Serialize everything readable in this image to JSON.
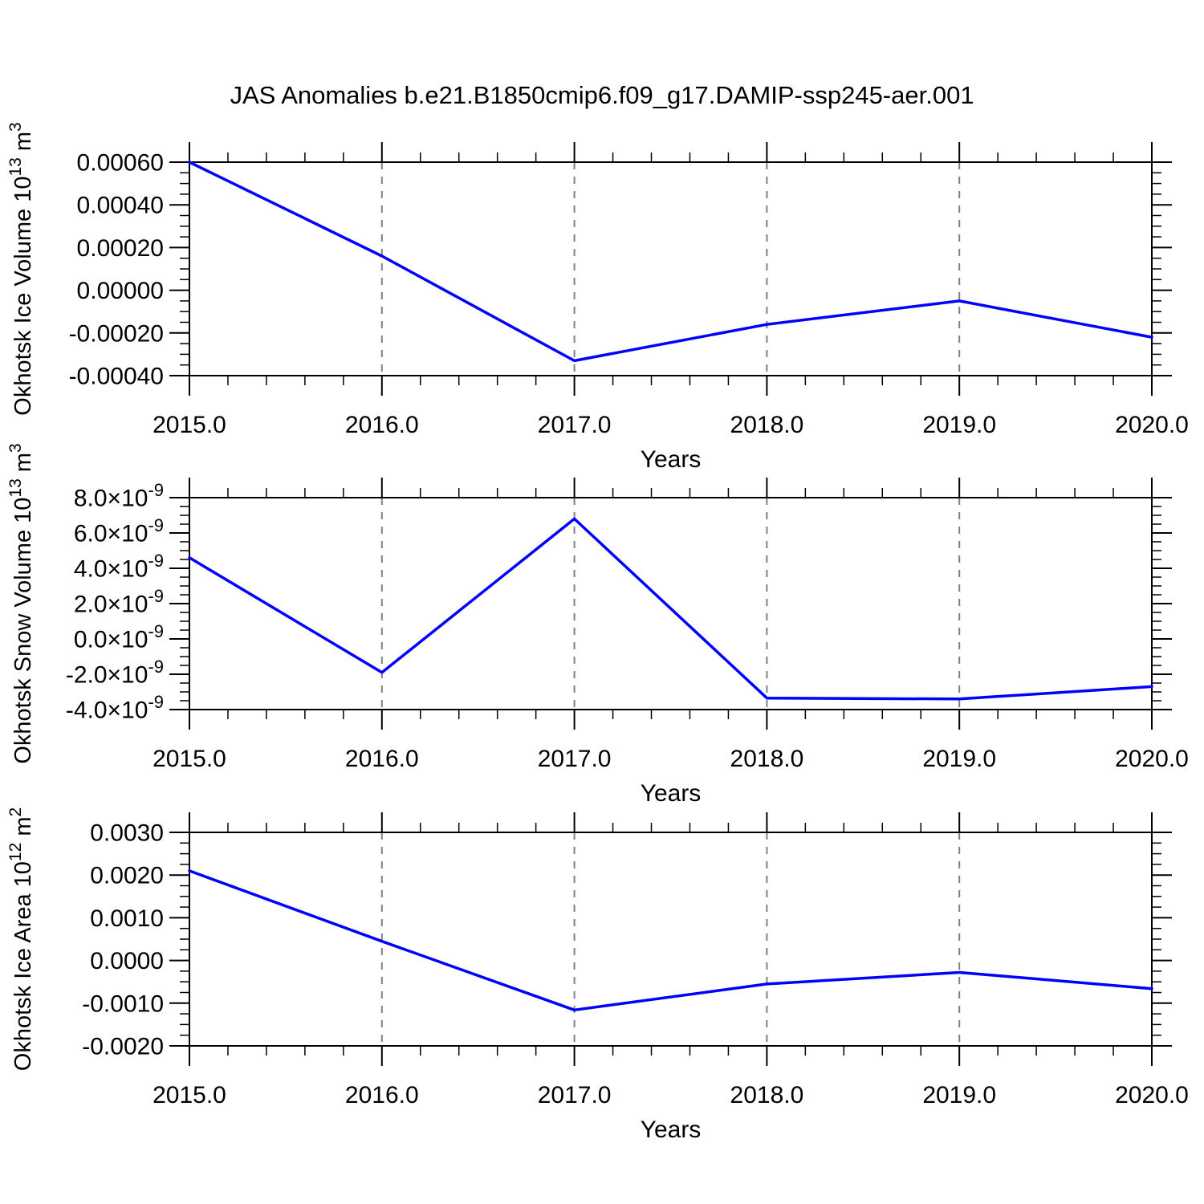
{
  "title": "JAS Anomalies b.e21.B1850cmip6.f09_g17.DAMIP-ssp245-aer.001",
  "colors": {
    "line": "#0000ff",
    "frame": "#000000",
    "grid": "#808080",
    "text": "#000000",
    "background": "#ffffff"
  },
  "chart_data": [
    {
      "type": "line",
      "name": "ice-volume",
      "ylabel": "Okhotsk Ice Volume 10^{13} m^{3}",
      "xlabel": "Years",
      "x": [
        2015,
        2016,
        2017,
        2018,
        2019,
        2020
      ],
      "values": [
        0.0006,
        0.00016,
        -0.00033,
        -0.00016,
        -5e-05,
        -0.00022
      ],
      "xlim": [
        2015.0,
        2020.0
      ],
      "ylim": [
        -0.0004,
        0.0006
      ],
      "ytick_step": 0.0002,
      "ytick_labels": [
        "0.00060",
        "0.00040",
        "0.00020",
        "0.00000",
        "-0.00020",
        "-0.00040"
      ],
      "yminor_per_major": 3,
      "xtick_labels": [
        "2015.0",
        "2016.0",
        "2017.0",
        "2018.0",
        "2019.0",
        "2020.0"
      ],
      "xminor_per_major": 4,
      "grid_x": [
        2016,
        2017,
        2018,
        2019
      ],
      "grid_on": "x-dashed",
      "legend": "none"
    },
    {
      "type": "line",
      "name": "snow-volume",
      "ylabel": "Okhotsk Snow Volume 10^{13} m^{3}",
      "xlabel": "Years",
      "x": [
        2015,
        2016,
        2017,
        2018,
        2019,
        2020
      ],
      "values": [
        4.6e-09,
        -1.9e-09,
        6.8e-09,
        -3.35e-09,
        -3.4e-09,
        -2.7e-09
      ],
      "xlim": [
        2015.0,
        2020.0
      ],
      "ylim": [
        -4e-09,
        8e-09
      ],
      "ytick_step": 2e-09,
      "ytick_labels": [
        "8.0×10^{-9}",
        "6.0×10^{-9}",
        "4.0×10^{-9}",
        "2.0×10^{-9}",
        "0.0×10^{-9}",
        "-2.0×10^{-9}",
        "-4.0×10^{-9}"
      ],
      "yminor_per_major": 3,
      "xtick_labels": [
        "2015.0",
        "2016.0",
        "2017.0",
        "2018.0",
        "2019.0",
        "2020.0"
      ],
      "xminor_per_major": 4,
      "grid_x": [
        2016,
        2017,
        2018,
        2019
      ],
      "grid_on": "x-dashed",
      "legend": "none"
    },
    {
      "type": "line",
      "name": "ice-area",
      "ylabel": "Okhotsk Ice Area 10^{12} m^{2}",
      "xlabel": "Years",
      "x": [
        2015,
        2016,
        2017,
        2018,
        2019,
        2020
      ],
      "values": [
        0.0021,
        0.00045,
        -0.00116,
        -0.00055,
        -0.00028,
        -0.00066
      ],
      "xlim": [
        2015.0,
        2020.0
      ],
      "ylim": [
        -0.002,
        0.003
      ],
      "ytick_step": 0.001,
      "ytick_labels": [
        "0.0030",
        "0.0020",
        "0.0010",
        "0.0000",
        "-0.0010",
        "-0.0020"
      ],
      "yminor_per_major": 3,
      "xtick_labels": [
        "2015.0",
        "2016.0",
        "2017.0",
        "2018.0",
        "2019.0",
        "2020.0"
      ],
      "xminor_per_major": 4,
      "grid_x": [
        2016,
        2017,
        2018,
        2019
      ],
      "grid_on": "x-dashed",
      "legend": "none"
    }
  ]
}
